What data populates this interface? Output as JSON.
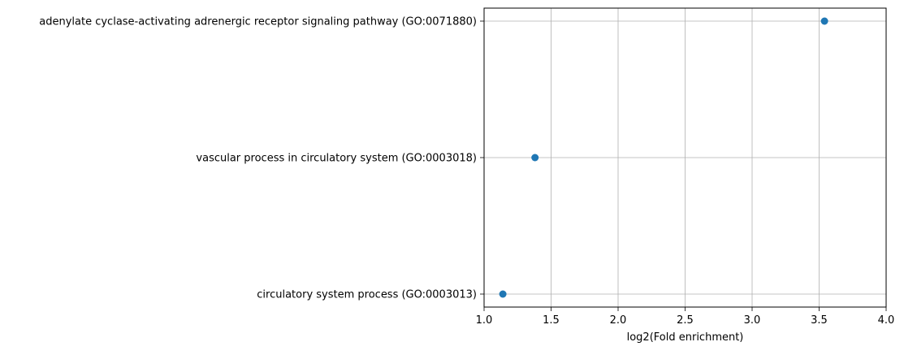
{
  "chart_data": {
    "type": "scatter",
    "xlabel": "log2(Fold enrichment)",
    "ylabel": "",
    "title": "",
    "xlim": [
      1.0,
      4.0
    ],
    "xticks": [
      1.0,
      1.5,
      2.0,
      2.5,
      3.0,
      3.5,
      4.0
    ],
    "xtick_labels": [
      "1.0",
      "1.5",
      "2.0",
      "2.5",
      "3.0",
      "3.5",
      "4.0"
    ],
    "grid": true,
    "categories": [
      "circulatory system process (GO:0003013)",
      "vascular process in circulatory system (GO:0003018)",
      "adenylate cyclase-activating adrenergic receptor signaling pathway (GO:0071880)"
    ],
    "values": [
      1.14,
      1.38,
      3.54
    ],
    "color": "#1f77b4"
  }
}
